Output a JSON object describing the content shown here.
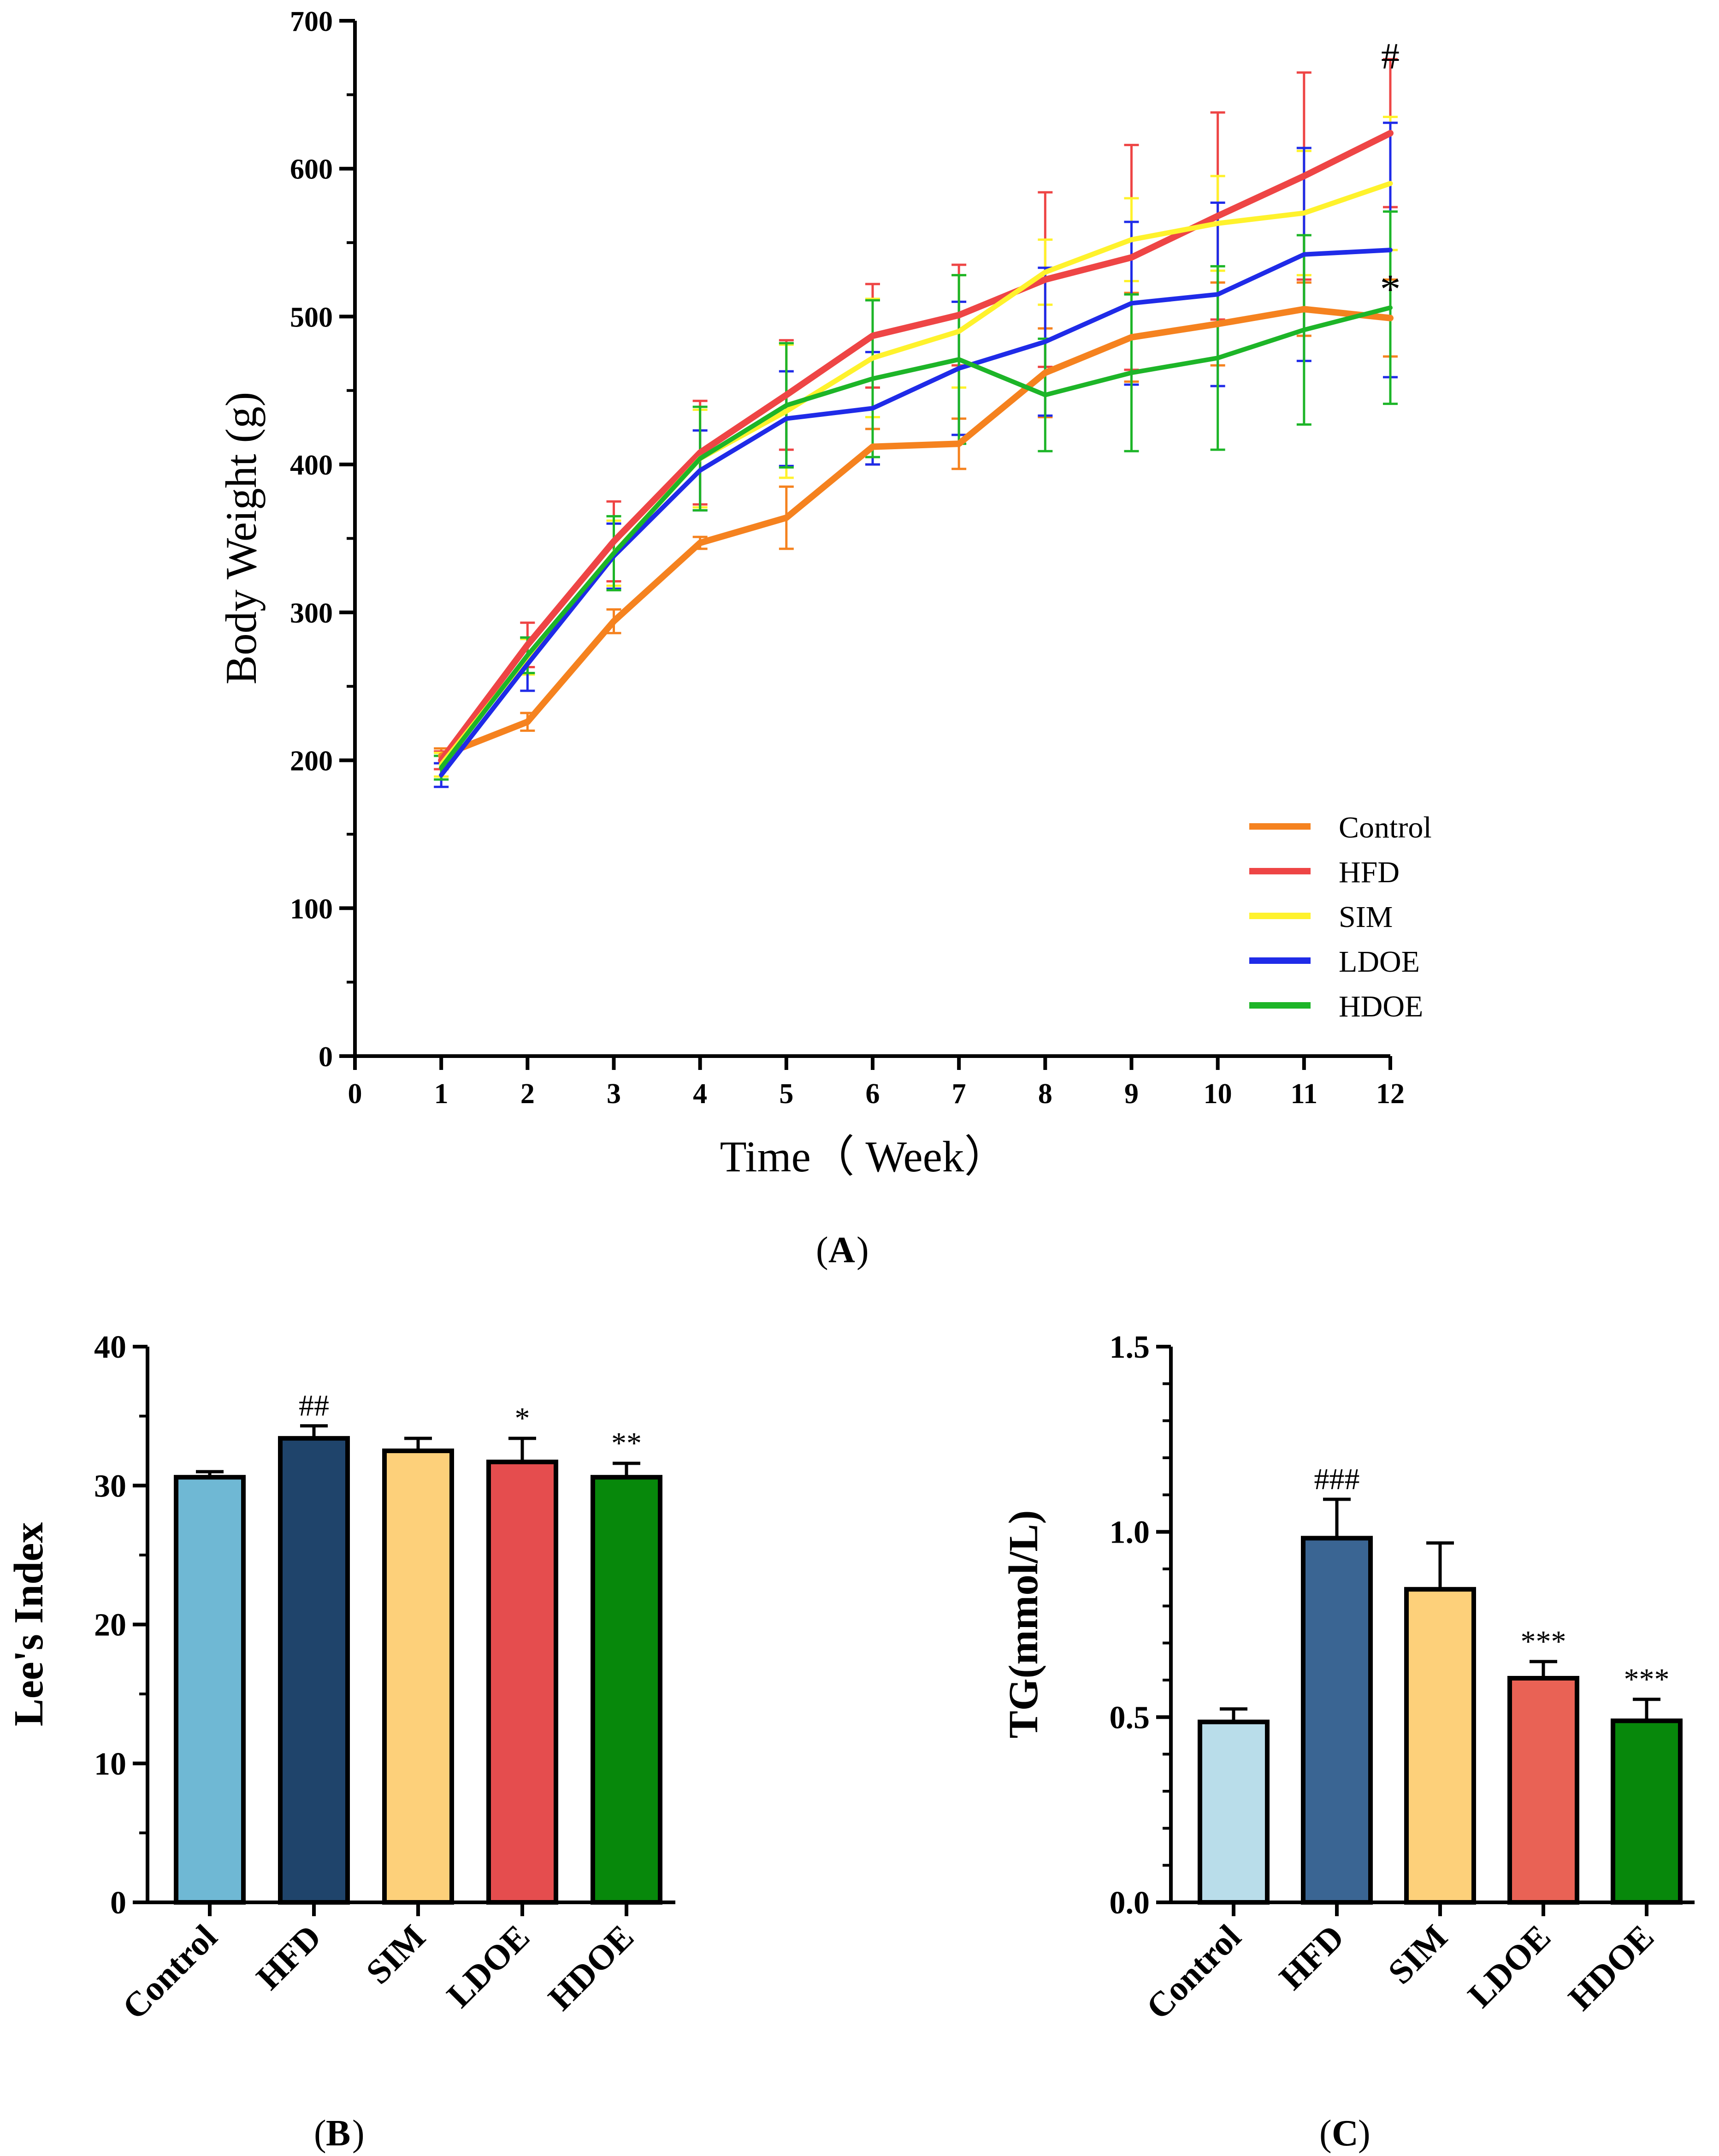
{
  "chart_data": [
    {
      "id": "A",
      "type": "line",
      "panel_label": "A",
      "xlabel": "Time（ Week）",
      "ylabel": "Body Weight (g)",
      "xlim": [
        0,
        12
      ],
      "ylim": [
        0,
        700
      ],
      "xticks": [
        "0",
        "1",
        "2",
        "3",
        "4",
        "5",
        "6",
        "7",
        "8",
        "9",
        "10",
        "11",
        "12"
      ],
      "yticks": [
        "0",
        "100",
        "200",
        "300",
        "400",
        "500",
        "600",
        "700"
      ],
      "x": [
        1,
        2,
        3,
        4,
        5,
        6,
        7,
        8,
        9,
        10,
        11,
        12
      ],
      "legend_position": "bottom-right",
      "series": [
        {
          "name": "Control",
          "color": "#F5821F",
          "width": 14,
          "values": [
            203,
            226,
            294,
            347,
            364,
            412,
            414,
            462,
            486,
            495,
            505,
            499
          ],
          "errors": [
            5,
            6,
            8,
            4,
            21,
            12,
            17,
            30,
            30,
            28,
            18,
            26
          ]
        },
        {
          "name": "HFD",
          "color": "#EE4545",
          "width": 14,
          "values": [
            200,
            278,
            348,
            408,
            447,
            487,
            501,
            525,
            540,
            568,
            595,
            624
          ],
          "errors": [
            6,
            15,
            27,
            35,
            37,
            35,
            34,
            59,
            76,
            70,
            70,
            50
          ]
        },
        {
          "name": "SIM",
          "color": "#FFF22C",
          "width": 11,
          "values": [
            197,
            270,
            340,
            404,
            436,
            472,
            490,
            530,
            552,
            563,
            570,
            590
          ],
          "errors": [
            8,
            12,
            22,
            33,
            45,
            40,
            38,
            22,
            28,
            32,
            42,
            45
          ]
        },
        {
          "name": "LDOE",
          "color": "#1F2BE8",
          "width": 10,
          "values": [
            190,
            265,
            338,
            396,
            431,
            438,
            465,
            483,
            509,
            515,
            542,
            545
          ],
          "errors": [
            8,
            18,
            22,
            27,
            32,
            38,
            45,
            50,
            55,
            62,
            72,
            86
          ]
        },
        {
          "name": "HDOE",
          "color": "#1DB528",
          "width": 10,
          "values": [
            195,
            271,
            340,
            404,
            440,
            458,
            471,
            447,
            462,
            472,
            491,
            506
          ],
          "errors": [
            8,
            12,
            25,
            35,
            42,
            53,
            57,
            38,
            53,
            62,
            64,
            65
          ]
        }
      ],
      "annotations": [
        {
          "text": "#",
          "series": "HFD",
          "x": 12
        },
        {
          "text": "*",
          "series": "HDOE",
          "x": 12
        }
      ]
    },
    {
      "id": "B",
      "type": "bar",
      "panel_label": "B",
      "title": "",
      "xlabel": "",
      "ylabel": "Lee's Index",
      "ylim": [
        0,
        40
      ],
      "yticks": [
        "0",
        "10",
        "20",
        "30",
        "40"
      ],
      "categories": [
        "Control",
        "HFD",
        "SIM",
        "LDOE",
        "HDOE"
      ],
      "values": [
        30.6,
        33.4,
        32.5,
        31.7,
        30.6
      ],
      "errors": [
        0.4,
        0.9,
        0.9,
        1.7,
        1.0
      ],
      "colors": [
        "#6FB8D4",
        "#1F446B",
        "#FDD07A",
        "#E54D4E",
        "#07880B"
      ],
      "annotations": [
        "",
        "##",
        "",
        "*",
        "**"
      ]
    },
    {
      "id": "C",
      "type": "bar",
      "panel_label": "C",
      "title": "",
      "xlabel": "",
      "ylabel": "TG(mmol/L)",
      "ylim": [
        0,
        1.5
      ],
      "yticks": [
        "0.0",
        "0.5",
        "1.0",
        "1.5"
      ],
      "categories": [
        "Control",
        "HFD",
        "SIM",
        "LDOE",
        "HDOE"
      ],
      "values": [
        0.487,
        0.983,
        0.845,
        0.605,
        0.49
      ],
      "errors": [
        0.035,
        0.105,
        0.125,
        0.045,
        0.058
      ],
      "colors": [
        "#B9DDEA",
        "#3A6593",
        "#FDD07A",
        "#E96255",
        "#07880B"
      ],
      "annotations": [
        "",
        "###",
        "",
        "***",
        "***"
      ]
    }
  ]
}
